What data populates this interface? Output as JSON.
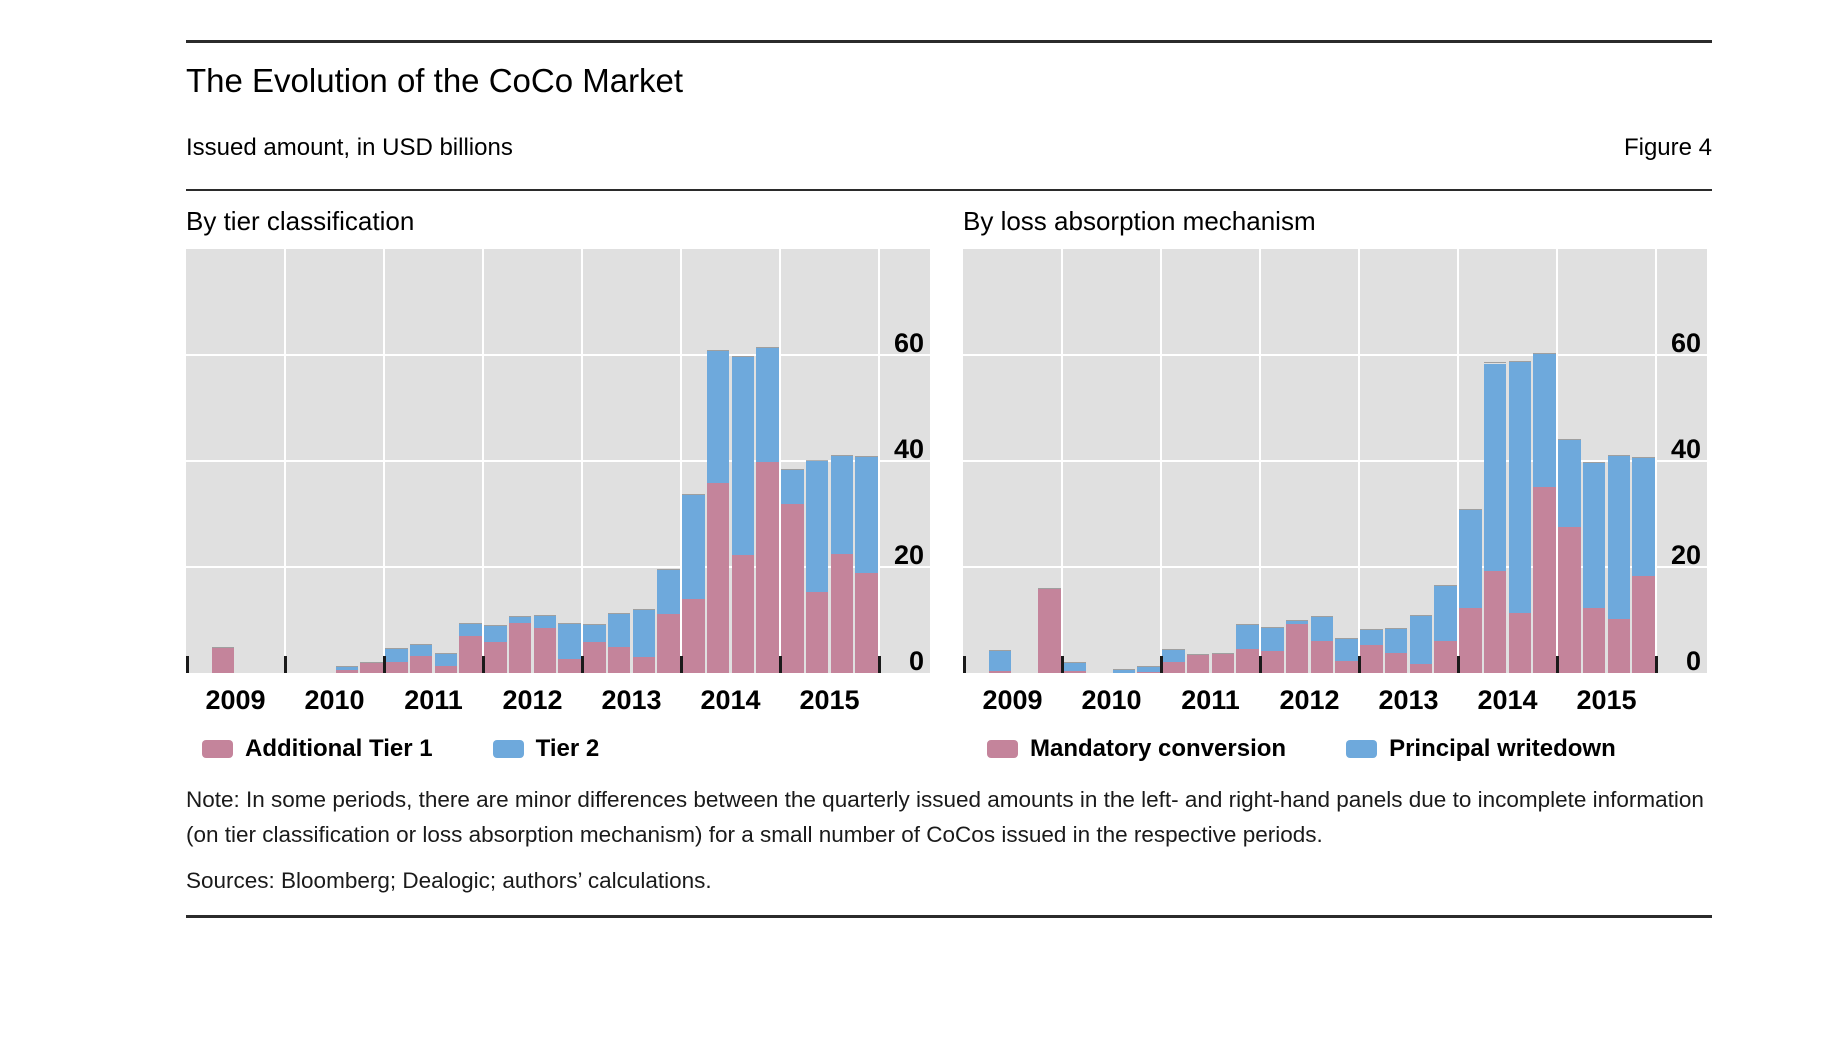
{
  "header": {
    "title": "The Evolution of the CoCo Market",
    "subtitle": "Issued amount, in USD billions",
    "figure_label": "Figure 4"
  },
  "note": "Note: In some periods, there are minor differences between the quarterly issued amounts in the left- and right-hand panels due to incomplete information (on tier classification or loss absorption mechanism) for a small number of CoCos issued in the respective periods.",
  "sources": "Sources: Bloomberg; Dealogic; authors’ calculations.",
  "colors": {
    "pink": "#c4849b",
    "blue": "#6ea9dc",
    "panel_bg": "#e0e0e0",
    "grid": "#ffffff",
    "text": "#111111"
  },
  "chart_data": [
    {
      "type": "bar",
      "stacked": true,
      "title": "By tier classification",
      "x": [
        "2009-Q1",
        "2009-Q2",
        "2009-Q3",
        "2009-Q4",
        "2010-Q1",
        "2010-Q2",
        "2010-Q3",
        "2010-Q4",
        "2011-Q1",
        "2011-Q2",
        "2011-Q3",
        "2011-Q4",
        "2012-Q1",
        "2012-Q2",
        "2012-Q3",
        "2012-Q4",
        "2013-Q1",
        "2013-Q2",
        "2013-Q3",
        "2013-Q4",
        "2014-Q1",
        "2014-Q2",
        "2014-Q3",
        "2014-Q4",
        "2015-Q1",
        "2015-Q2",
        "2015-Q3",
        "2015-Q4"
      ],
      "year_labels": [
        "2009",
        "2010",
        "2011",
        "2012",
        "2013",
        "2014",
        "2015"
      ],
      "series": [
        {
          "name": "Additional Tier 1",
          "color_key": "pink",
          "values": [
            0,
            4.7,
            0,
            0,
            0,
            0,
            0.6,
            1.9,
            2.0,
            3.2,
            1.3,
            6.9,
            5.9,
            9.5,
            8.4,
            2.7,
            5.8,
            4.9,
            3.0,
            11.2,
            14.0,
            35.8,
            22.3,
            39.9,
            31.9,
            15.2,
            22.4,
            18.9
          ]
        },
        {
          "name": "Tier 2",
          "color_key": "blue",
          "values": [
            0,
            0,
            0,
            0,
            0,
            0,
            0.5,
            0,
            2.5,
            2.0,
            2.3,
            2.3,
            2.9,
            1.1,
            2.4,
            6.5,
            3.2,
            6.3,
            8.9,
            8.2,
            19.6,
            24.9,
            37.4,
            21.4,
            6.4,
            24.8,
            18.5,
            21.9
          ]
        }
      ],
      "ylim": [
        0,
        80
      ],
      "yticks": [
        0,
        20,
        40,
        60
      ],
      "yticks_side": "right",
      "grid": true,
      "legend_position": "bottom"
    },
    {
      "type": "bar",
      "stacked": true,
      "title": "By loss absorption mechanism",
      "x": [
        "2009-Q1",
        "2009-Q2",
        "2009-Q3",
        "2009-Q4",
        "2010-Q1",
        "2010-Q2",
        "2010-Q3",
        "2010-Q4",
        "2011-Q1",
        "2011-Q2",
        "2011-Q3",
        "2011-Q4",
        "2012-Q1",
        "2012-Q2",
        "2012-Q3",
        "2012-Q4",
        "2013-Q1",
        "2013-Q2",
        "2013-Q3",
        "2013-Q4",
        "2014-Q1",
        "2014-Q2",
        "2014-Q3",
        "2014-Q4",
        "2015-Q1",
        "2015-Q2",
        "2015-Q3",
        "2015-Q4"
      ],
      "year_labels": [
        "2009",
        "2010",
        "2011",
        "2012",
        "2013",
        "2014",
        "2015"
      ],
      "series": [
        {
          "name": "Mandatory conversion",
          "color_key": "pink",
          "values": [
            0,
            0.3,
            0,
            15.9,
            0.4,
            0,
            0,
            0.2,
            2.0,
            3.4,
            3.5,
            4.5,
            4.1,
            9.3,
            6.0,
            2.3,
            5.3,
            3.7,
            1.7,
            6.1,
            12.3,
            19.2,
            11.4,
            35.1,
            27.6,
            12.3,
            10.1,
            18.3
          ]
        },
        {
          "name": "Principal writedown",
          "color_key": "blue",
          "values": [
            0,
            3.9,
            0,
            0,
            1.4,
            0,
            0.6,
            1.0,
            2.3,
            0,
            0,
            4.6,
            4.4,
            0.5,
            4.5,
            4.2,
            2.8,
            4.6,
            9.0,
            10.3,
            18.5,
            39.2,
            47.2,
            25.0,
            16.4,
            27.3,
            30.8,
            22.2
          ]
        }
      ],
      "ylim": [
        0,
        80
      ],
      "yticks": [
        0,
        20,
        40,
        60
      ],
      "yticks_side": "right",
      "grid": true,
      "legend_position": "bottom"
    }
  ]
}
